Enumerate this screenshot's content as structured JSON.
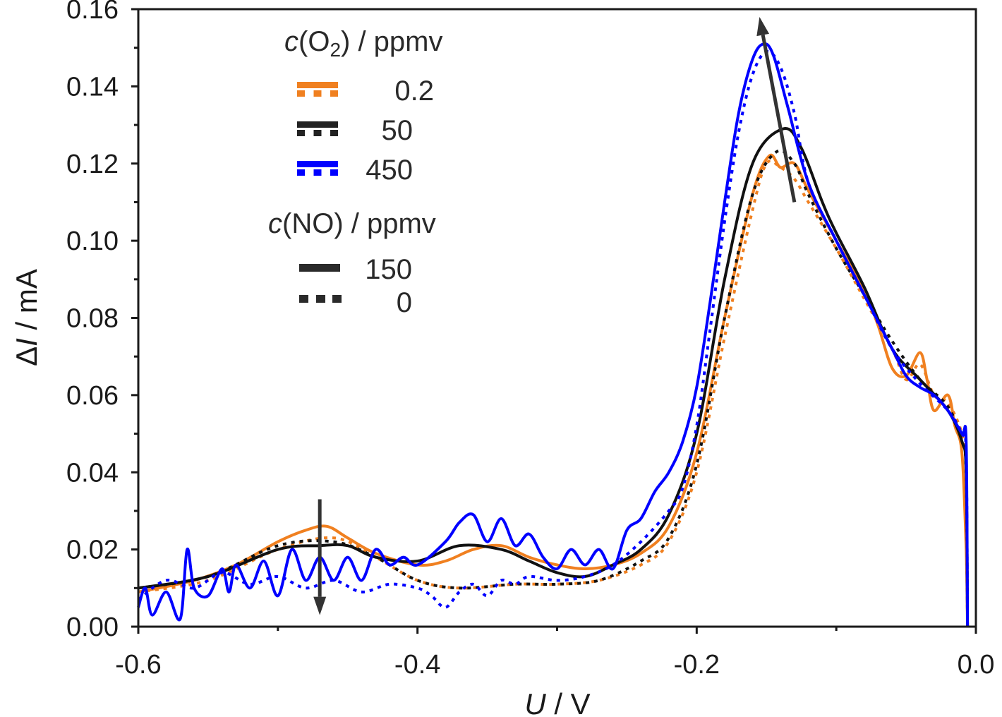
{
  "chart_data": {
    "type": "line",
    "title": "",
    "xlabel": {
      "italic": "U",
      "rest": " / V"
    },
    "ylabel": {
      "prefix": "Δ",
      "italic": "I",
      "rest": " / mA"
    },
    "xlim": [
      -0.6,
      0.0
    ],
    "ylim": [
      0.0,
      0.16
    ],
    "xticks": [
      "-0.6",
      "-0.4",
      "-0.2",
      "0.0"
    ],
    "xtick_values": [
      -0.6,
      -0.4,
      -0.2,
      0.0
    ],
    "xminor": [
      -0.5,
      -0.3,
      -0.1
    ],
    "yticks": [
      "0.00",
      "0.02",
      "0.04",
      "0.06",
      "0.08",
      "0.10",
      "0.12",
      "0.14",
      "0.16"
    ],
    "ytick_values": [
      0,
      0.02,
      0.04,
      0.06,
      0.08,
      0.1,
      0.12,
      0.14,
      0.16
    ],
    "grid": false,
    "legend": {
      "placement": "top-left",
      "o2_title": {
        "italic": "c",
        "pre": "(O",
        "sub": "2",
        "post": ") / ppmv"
      },
      "o2_entries": [
        {
          "label": "0.2",
          "color": "#f08020"
        },
        {
          "label": "50",
          "color": "#222222"
        },
        {
          "label": "450",
          "color": "#0000ff"
        }
      ],
      "no_title": {
        "italic": "c",
        "rest": "(NO) / ppmv"
      },
      "no_entries": [
        {
          "label": "150",
          "style": "solid"
        },
        {
          "label": "0",
          "style": "dotted"
        }
      ]
    },
    "annotations": [
      {
        "type": "arrow",
        "from": [
          -0.13,
          0.11
        ],
        "to": [
          -0.155,
          0.158
        ],
        "color": "#333333"
      },
      {
        "type": "arrow",
        "from": [
          -0.47,
          0.033
        ],
        "to": [
          -0.47,
          0.003
        ],
        "color": "#333333"
      }
    ],
    "series": [
      {
        "name": "O2 0.2 ppmv, NO 0 ppmv",
        "color": "#f08020",
        "style": "dotted",
        "x": [
          -0.6,
          -0.55,
          -0.5,
          -0.46,
          -0.43,
          -0.4,
          -0.37,
          -0.33,
          -0.3,
          -0.27,
          -0.24,
          -0.22,
          -0.2,
          -0.18,
          -0.16,
          -0.15,
          -0.14,
          -0.13,
          -0.12,
          -0.1,
          -0.08,
          -0.06,
          -0.05,
          -0.04,
          -0.03,
          -0.02,
          -0.01,
          -0.007,
          -0.006
        ],
        "y": [
          0.009,
          0.012,
          0.02,
          0.023,
          0.018,
          0.012,
          0.01,
          0.011,
          0.011,
          0.012,
          0.016,
          0.022,
          0.04,
          0.075,
          0.108,
          0.12,
          0.119,
          0.116,
          0.11,
          0.098,
          0.085,
          0.072,
          0.064,
          0.068,
          0.06,
          0.058,
          0.05,
          0.04,
          0.0
        ]
      },
      {
        "name": "O2 0.2 ppmv, NO 150 ppmv",
        "color": "#f08020",
        "style": "solid",
        "x": [
          -0.6,
          -0.56,
          -0.53,
          -0.5,
          -0.48,
          -0.465,
          -0.45,
          -0.43,
          -0.4,
          -0.38,
          -0.36,
          -0.34,
          -0.32,
          -0.3,
          -0.28,
          -0.26,
          -0.24,
          -0.22,
          -0.2,
          -0.18,
          -0.16,
          -0.148,
          -0.14,
          -0.13,
          -0.12,
          -0.1,
          -0.08,
          -0.07,
          -0.06,
          -0.05,
          -0.04,
          -0.035,
          -0.03,
          -0.02,
          -0.015,
          -0.01,
          -0.007,
          -0.006
        ],
        "y": [
          0.009,
          0.012,
          0.016,
          0.022,
          0.025,
          0.026,
          0.023,
          0.019,
          0.016,
          0.017,
          0.02,
          0.021,
          0.018,
          0.016,
          0.015,
          0.016,
          0.019,
          0.026,
          0.045,
          0.08,
          0.112,
          0.122,
          0.119,
          0.12,
          0.113,
          0.1,
          0.087,
          0.078,
          0.067,
          0.065,
          0.071,
          0.064,
          0.056,
          0.06,
          0.052,
          0.045,
          0.02,
          0.0
        ]
      },
      {
        "name": "O2 50 ppmv, NO 0 ppmv",
        "color": "#111111",
        "style": "dotted",
        "x": [
          -0.6,
          -0.55,
          -0.5,
          -0.46,
          -0.43,
          -0.4,
          -0.37,
          -0.33,
          -0.3,
          -0.27,
          -0.24,
          -0.22,
          -0.2,
          -0.18,
          -0.16,
          -0.143,
          -0.13,
          -0.12,
          -0.1,
          -0.08,
          -0.06,
          -0.04,
          -0.02,
          -0.01,
          -0.007,
          -0.006
        ],
        "y": [
          0.01,
          0.013,
          0.021,
          0.022,
          0.018,
          0.012,
          0.01,
          0.011,
          0.011,
          0.012,
          0.017,
          0.023,
          0.042,
          0.08,
          0.112,
          0.123,
          0.12,
          0.112,
          0.098,
          0.086,
          0.074,
          0.064,
          0.057,
          0.048,
          0.04,
          0.0
        ]
      },
      {
        "name": "O2 50 ppmv, NO 150 ppmv",
        "color": "#111111",
        "style": "solid",
        "x": [
          -0.6,
          -0.55,
          -0.5,
          -0.47,
          -0.45,
          -0.43,
          -0.4,
          -0.37,
          -0.34,
          -0.32,
          -0.3,
          -0.28,
          -0.26,
          -0.24,
          -0.22,
          -0.2,
          -0.18,
          -0.16,
          -0.138,
          -0.125,
          -0.11,
          -0.1,
          -0.08,
          -0.06,
          -0.04,
          -0.02,
          -0.01,
          -0.007,
          -0.006
        ],
        "y": [
          0.01,
          0.013,
          0.02,
          0.021,
          0.021,
          0.018,
          0.017,
          0.021,
          0.02,
          0.017,
          0.014,
          0.013,
          0.016,
          0.02,
          0.029,
          0.05,
          0.09,
          0.12,
          0.129,
          0.124,
          0.11,
          0.102,
          0.088,
          0.072,
          0.064,
          0.056,
          0.048,
          0.04,
          0.0
        ]
      },
      {
        "name": "O2 450 ppmv, NO 0 ppmv",
        "color": "#0000ff",
        "style": "dotted",
        "x": [
          -0.6,
          -0.58,
          -0.56,
          -0.54,
          -0.52,
          -0.5,
          -0.48,
          -0.46,
          -0.44,
          -0.42,
          -0.4,
          -0.39,
          -0.38,
          -0.37,
          -0.36,
          -0.35,
          -0.34,
          -0.33,
          -0.32,
          -0.3,
          -0.28,
          -0.26,
          -0.24,
          -0.22,
          -0.21,
          -0.2,
          -0.19,
          -0.18,
          -0.17,
          -0.16,
          -0.15,
          -0.14,
          -0.13,
          -0.12,
          -0.1,
          -0.08,
          -0.06,
          -0.04,
          -0.02,
          -0.01,
          -0.007,
          -0.006
        ],
        "y": [
          0.007,
          0.012,
          0.01,
          0.014,
          0.011,
          0.013,
          0.01,
          0.012,
          0.009,
          0.011,
          0.01,
          0.008,
          0.005,
          0.009,
          0.011,
          0.008,
          0.012,
          0.011,
          0.013,
          0.012,
          0.013,
          0.016,
          0.022,
          0.03,
          0.036,
          0.052,
          0.078,
          0.105,
          0.128,
          0.143,
          0.149,
          0.145,
          0.133,
          0.115,
          0.1,
          0.086,
          0.072,
          0.063,
          0.056,
          0.05,
          0.045,
          0.0
        ]
      },
      {
        "name": "O2 450 ppmv, NO 150 ppmv",
        "color": "#0000ff",
        "style": "solid",
        "x": [
          -0.6,
          -0.595,
          -0.59,
          -0.58,
          -0.57,
          -0.565,
          -0.56,
          -0.55,
          -0.54,
          -0.535,
          -0.53,
          -0.52,
          -0.51,
          -0.5,
          -0.49,
          -0.48,
          -0.47,
          -0.46,
          -0.45,
          -0.44,
          -0.43,
          -0.42,
          -0.41,
          -0.4,
          -0.38,
          -0.37,
          -0.36,
          -0.35,
          -0.34,
          -0.33,
          -0.32,
          -0.31,
          -0.3,
          -0.29,
          -0.28,
          -0.27,
          -0.26,
          -0.25,
          -0.24,
          -0.23,
          -0.22,
          -0.21,
          -0.2,
          -0.19,
          -0.18,
          -0.17,
          -0.16,
          -0.152,
          -0.145,
          -0.135,
          -0.12,
          -0.1,
          -0.08,
          -0.06,
          -0.05,
          -0.04,
          -0.03,
          -0.02,
          -0.01,
          -0.007,
          -0.006
        ],
        "y": [
          0.005,
          0.01,
          0.003,
          0.009,
          0.002,
          0.02,
          0.01,
          0.008,
          0.015,
          0.009,
          0.016,
          0.01,
          0.017,
          0.008,
          0.02,
          0.012,
          0.018,
          0.012,
          0.018,
          0.012,
          0.02,
          0.016,
          0.018,
          0.016,
          0.022,
          0.027,
          0.029,
          0.022,
          0.028,
          0.021,
          0.024,
          0.018,
          0.015,
          0.02,
          0.016,
          0.02,
          0.015,
          0.025,
          0.028,
          0.035,
          0.04,
          0.048,
          0.062,
          0.085,
          0.11,
          0.133,
          0.147,
          0.151,
          0.148,
          0.135,
          0.115,
          0.1,
          0.086,
          0.072,
          0.065,
          0.062,
          0.06,
          0.056,
          0.05,
          0.048,
          0.0
        ]
      }
    ]
  }
}
